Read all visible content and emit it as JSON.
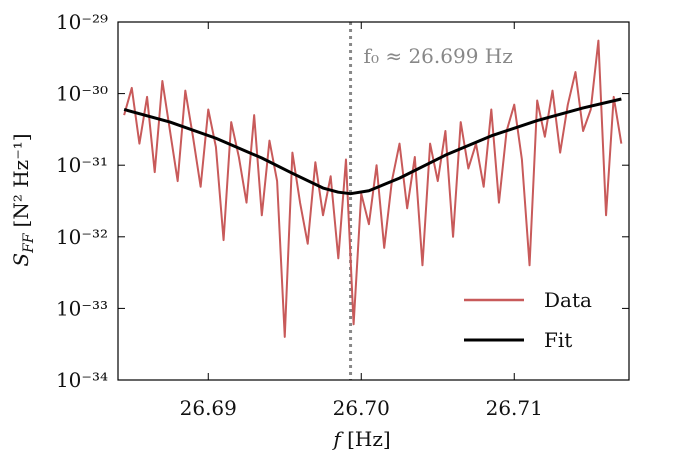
{
  "chart_data": {
    "type": "line",
    "log_y": true,
    "xlabel": {
      "symbol": "f",
      "unit": "[Hz]"
    },
    "ylabel": {
      "symbol": "S",
      "subscript": "FF",
      "unit": "[N² Hz⁻¹]"
    },
    "annotation": "f₀ ≈ 26.699 Hz",
    "vline": {
      "x": 26.6993,
      "color": "#888888"
    },
    "xlim": [
      26.6841,
      26.7175
    ],
    "ylim": [
      1e-34,
      1e-29
    ],
    "xticks": [
      26.69,
      {
        "value": 26.7,
        "label": "26.70"
      },
      26.71
    ],
    "yticks": [
      {
        "value": 1e-34,
        "label": "10⁻³⁴"
      },
      {
        "value": 1e-33,
        "label": "10⁻³³"
      },
      {
        "value": 1e-32,
        "label": "10⁻³²"
      },
      {
        "value": 1e-31,
        "label": "10⁻³¹"
      },
      {
        "value": 1e-30,
        "label": "10⁻³⁰"
      },
      {
        "value": 1e-29,
        "label": "10⁻²⁹"
      }
    ],
    "legend": "lower right",
    "series": [
      {
        "name": "Data",
        "color": "#c85a5a",
        "x": [
          26.6845,
          26.685,
          26.6855,
          26.686,
          26.6865,
          26.687,
          26.6875,
          26.688,
          26.6885,
          26.689,
          26.6895,
          26.69,
          26.6905,
          26.691,
          26.6915,
          26.692,
          26.6925,
          26.693,
          26.6935,
          26.694,
          26.6945,
          26.695,
          26.6955,
          26.696,
          26.6965,
          26.697,
          26.6975,
          26.698,
          26.6985,
          26.699,
          26.6995,
          26.7,
          26.7005,
          26.701,
          26.7015,
          26.702,
          26.7025,
          26.703,
          26.7035,
          26.704,
          26.7045,
          26.705,
          26.7055,
          26.706,
          26.7065,
          26.707,
          26.7075,
          26.708,
          26.7085,
          26.709,
          26.7095,
          26.71,
          26.7105,
          26.711,
          26.7115,
          26.712,
          26.7125,
          26.713,
          26.7135,
          26.714,
          26.7145,
          26.715,
          26.7155,
          26.716,
          26.7165,
          26.717
        ],
        "values": [
          5e-31,
          1.2e-30,
          2e-31,
          9e-31,
          8e-32,
          1.5e-30,
          3e-31,
          6e-32,
          1.1e-30,
          2.5e-31,
          5e-32,
          6e-31,
          1.8e-31,
          9e-33,
          4e-31,
          1.3e-31,
          3e-32,
          5e-31,
          2e-32,
          2.2e-31,
          6e-32,
          4e-34,
          1.5e-31,
          3e-32,
          8e-33,
          1.1e-31,
          2e-32,
          7e-32,
          5e-33,
          1.2e-31,
          6e-34,
          4e-32,
          1.5e-32,
          1e-31,
          7e-33,
          6e-32,
          2e-31,
          2.5e-32,
          1.3e-31,
          4e-33,
          2e-31,
          6e-32,
          3e-31,
          1e-32,
          4e-31,
          9e-32,
          2e-31,
          5e-32,
          6e-31,
          3e-32,
          3e-31,
          7e-31,
          1.2e-31,
          4e-33,
          8e-31,
          2.5e-31,
          1.1e-30,
          1.5e-31,
          7e-31,
          2e-30,
          3e-31,
          6e-31,
          5.5e-30,
          2e-32,
          9e-31,
          2e-31
        ]
      },
      {
        "name": "Fit",
        "color": "#000000",
        "x": [
          26.6845,
          26.6875,
          26.6905,
          26.6935,
          26.6955,
          26.6975,
          26.6985,
          26.6993,
          26.7005,
          26.7025,
          26.7055,
          26.7085,
          26.7115,
          26.7145,
          26.717
        ],
        "values": [
          6e-31,
          4e-31,
          2.38e-31,
          1.26e-31,
          7.7e-32,
          4.8e-32,
          4.2e-32,
          4e-32,
          4.4e-32,
          6.6e-32,
          1.38e-31,
          2.57e-31,
          4.2e-31,
          6.3e-31,
          8.4e-31
        ]
      }
    ]
  }
}
